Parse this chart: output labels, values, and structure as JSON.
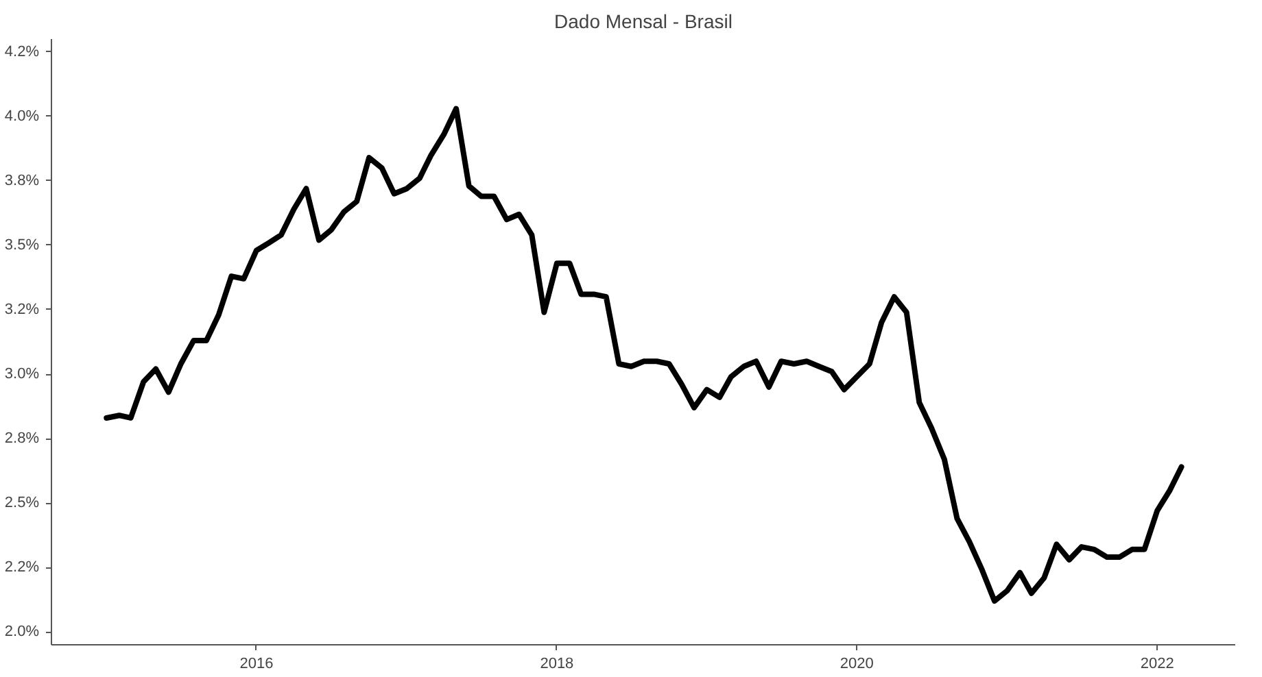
{
  "chart_data": {
    "type": "line",
    "title": "Dado Mensal - Brasil",
    "x": [
      "2015-01",
      "2015-02",
      "2015-03",
      "2015-04",
      "2015-05",
      "2015-06",
      "2015-07",
      "2015-08",
      "2015-09",
      "2015-10",
      "2015-11",
      "2015-12",
      "2016-01",
      "2016-02",
      "2016-03",
      "2016-04",
      "2016-05",
      "2016-06",
      "2016-07",
      "2016-08",
      "2016-09",
      "2016-10",
      "2016-11",
      "2016-12",
      "2017-01",
      "2017-02",
      "2017-03",
      "2017-04",
      "2017-05",
      "2017-06",
      "2017-07",
      "2017-08",
      "2017-09",
      "2017-10",
      "2017-11",
      "2017-12",
      "2018-01",
      "2018-02",
      "2018-03",
      "2018-04",
      "2018-05",
      "2018-06",
      "2018-07",
      "2018-08",
      "2018-09",
      "2018-10",
      "2018-11",
      "2018-12",
      "2019-01",
      "2019-02",
      "2019-03",
      "2019-04",
      "2019-05",
      "2019-06",
      "2019-07",
      "2019-08",
      "2019-09",
      "2019-10",
      "2019-11",
      "2019-12",
      "2020-01",
      "2020-02",
      "2020-03",
      "2020-04",
      "2020-05",
      "2020-06",
      "2020-07",
      "2020-08",
      "2020-09",
      "2020-10",
      "2020-11",
      "2020-12",
      "2021-01",
      "2021-02",
      "2021-03",
      "2021-04",
      "2021-05",
      "2021-06",
      "2021-07",
      "2021-08",
      "2021-09",
      "2021-10",
      "2021-11",
      "2021-12",
      "2022-01",
      "2022-02",
      "2022-03"
    ],
    "series": [
      {
        "color": "#000000",
        "values": [
          2.83,
          2.84,
          2.83,
          2.97,
          3.02,
          2.93,
          3.04,
          3.13,
          3.13,
          3.23,
          3.38,
          3.37,
          3.48,
          3.51,
          3.54,
          3.64,
          3.72,
          3.52,
          3.56,
          3.63,
          3.67,
          3.84,
          3.8,
          3.7,
          3.72,
          3.76,
          3.85,
          3.93,
          4.03,
          3.73,
          3.69,
          3.69,
          3.6,
          3.62,
          3.54,
          3.24,
          3.43,
          3.43,
          3.31,
          3.31,
          3.3,
          3.04,
          3.03,
          3.05,
          3.05,
          3.04,
          2.96,
          2.87,
          2.94,
          2.91,
          2.99,
          3.03,
          3.05,
          2.95,
          3.05,
          3.04,
          3.05,
          3.03,
          3.01,
          2.94,
          2.99,
          3.04,
          3.2,
          3.3,
          3.24,
          2.89,
          2.79,
          2.67,
          2.44,
          2.35,
          2.24,
          2.12,
          2.16,
          2.23,
          2.15,
          2.21,
          2.34,
          2.28,
          2.33,
          2.32,
          2.29,
          2.29,
          2.32,
          2.32,
          2.47,
          2.55,
          2.64
        ]
      }
    ],
    "xlim": [
      "2014-08-20",
      "2022-07-10"
    ],
    "xticks": [
      "2016",
      "2018",
      "2020",
      "2022"
    ],
    "ylim": [
      1.95,
      4.3
    ],
    "yticks": [
      {
        "value": 2.0,
        "label": "2.0%"
      },
      {
        "value": 2.25,
        "label": "2.2%"
      },
      {
        "value": 2.5,
        "label": "2.5%"
      },
      {
        "value": 2.75,
        "label": "2.8%"
      },
      {
        "value": 3.0,
        "label": "3.0%"
      },
      {
        "value": 3.25,
        "label": "3.2%"
      },
      {
        "value": 3.5,
        "label": "3.5%"
      },
      {
        "value": 3.75,
        "label": "3.8%"
      },
      {
        "value": 4.0,
        "label": "4.0%"
      },
      {
        "value": 4.25,
        "label": "4.2%"
      }
    ],
    "grid": false,
    "line_style": "solid"
  }
}
